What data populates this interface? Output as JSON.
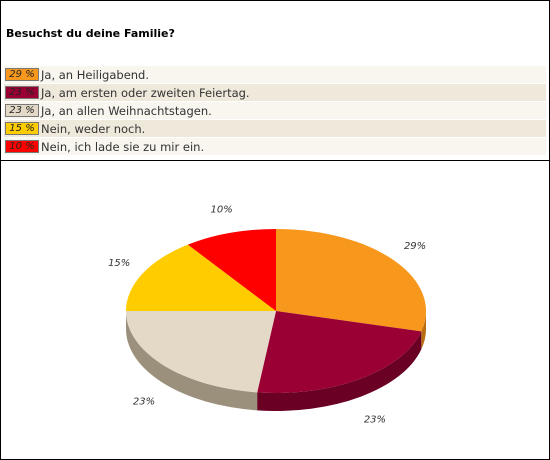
{
  "question": "Besuchst du deine Familie?",
  "chart_data": {
    "type": "pie",
    "title": "Besuchst du deine Familie?",
    "slices": [
      {
        "label": "Ja, an Heiligabend.",
        "percent": 29,
        "value_text": "29 %",
        "chart_label": "29%",
        "color": "#f7981d",
        "side_color": "#b86e10"
      },
      {
        "label": "Ja, am ersten oder zweiten Feiertag.",
        "percent": 23,
        "value_text": "23 %",
        "chart_label": "23%",
        "color": "#9b0035",
        "side_color": "#6a0024"
      },
      {
        "label": "Ja, an allen Weihnachtstagen.",
        "percent": 23,
        "value_text": "23 %",
        "chart_label": "23%",
        "color": "#e3d9c6",
        "side_color": "#9a907c"
      },
      {
        "label": "Nein, weder noch.",
        "percent": 15,
        "value_text": "15 %",
        "chart_label": "15%",
        "color": "#ffcc00",
        "side_color": "#b08a00"
      },
      {
        "label": "Nein, ich lade sie zu mir ein.",
        "percent": 10,
        "value_text": "10 %",
        "chart_label": "10%",
        "color": "#ff0000",
        "side_color": "#a30000"
      }
    ]
  }
}
